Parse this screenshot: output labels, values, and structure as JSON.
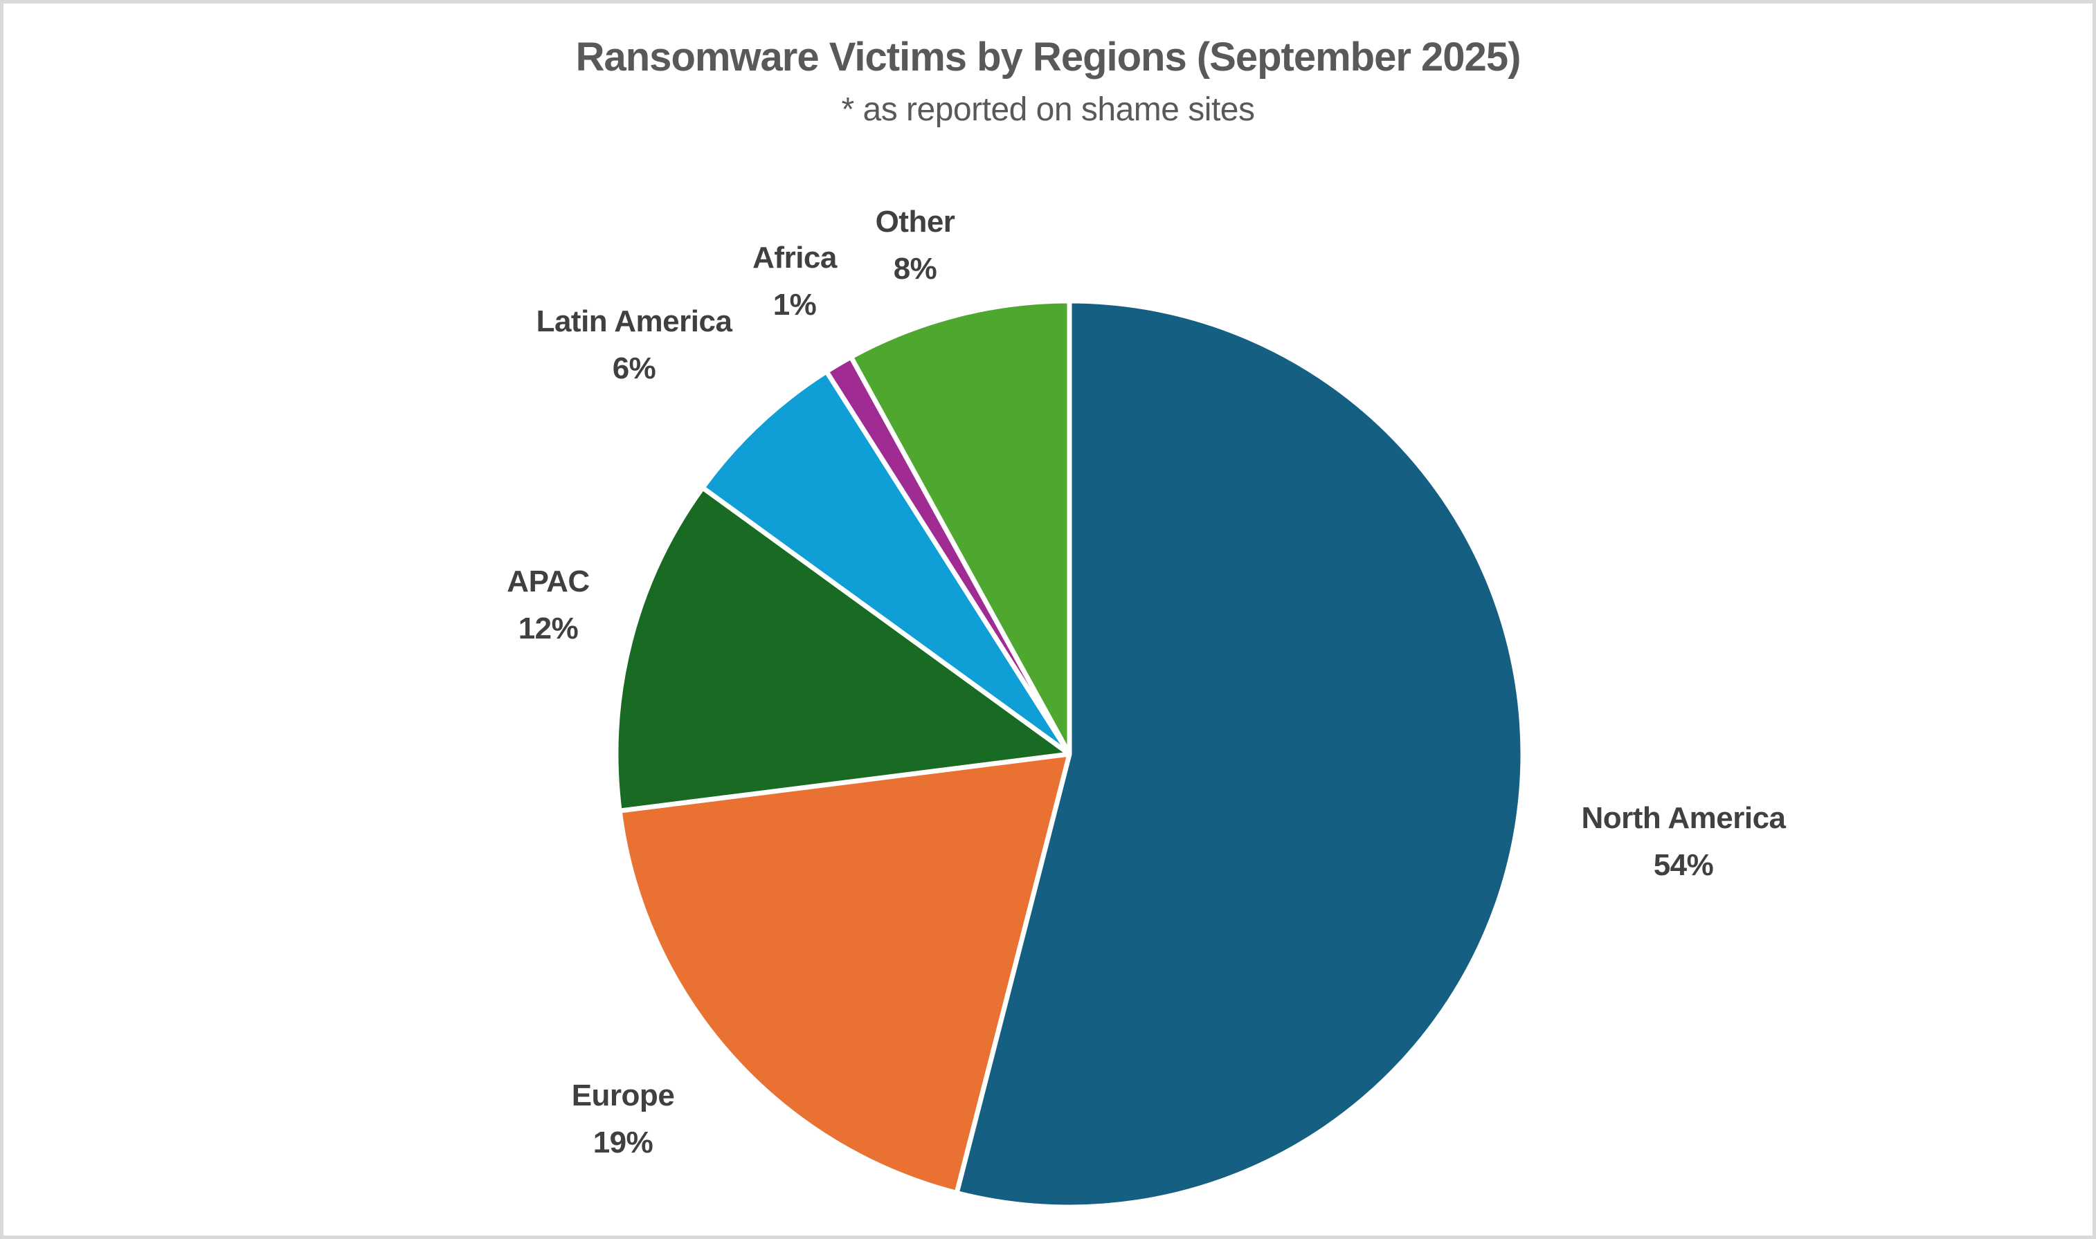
{
  "chart_data": {
    "type": "pie",
    "title": "Ransomware Victims by Regions (September 2025)",
    "subtitle": "* as reported on shame sites",
    "legend": "none",
    "label_style": "category name + percentage, outside slices",
    "start_angle_deg": 0,
    "direction": "clockwise",
    "unit": "percent",
    "slices": [
      {
        "name": "North America",
        "value": 54,
        "pct_label": "54%",
        "color": "#156082"
      },
      {
        "name": "Europe",
        "value": 19,
        "pct_label": "19%",
        "color": "#E97132"
      },
      {
        "name": "APAC",
        "value": 12,
        "pct_label": "12%",
        "color": "#196B24"
      },
      {
        "name": "Latin America",
        "value": 6,
        "pct_label": "6%",
        "color": "#0F9ED5"
      },
      {
        "name": "Africa",
        "value": 1,
        "pct_label": "1%",
        "color": "#A02B93"
      },
      {
        "name": "Other",
        "value": 8,
        "pct_label": "8%",
        "color": "#4EA72E"
      }
    ],
    "colors": {
      "title_text": "#595959",
      "label_text": "#404040",
      "slice_separator": "#FFFFFF",
      "frame_border": "#D9D9D9",
      "background": "#FFFFFF"
    }
  }
}
